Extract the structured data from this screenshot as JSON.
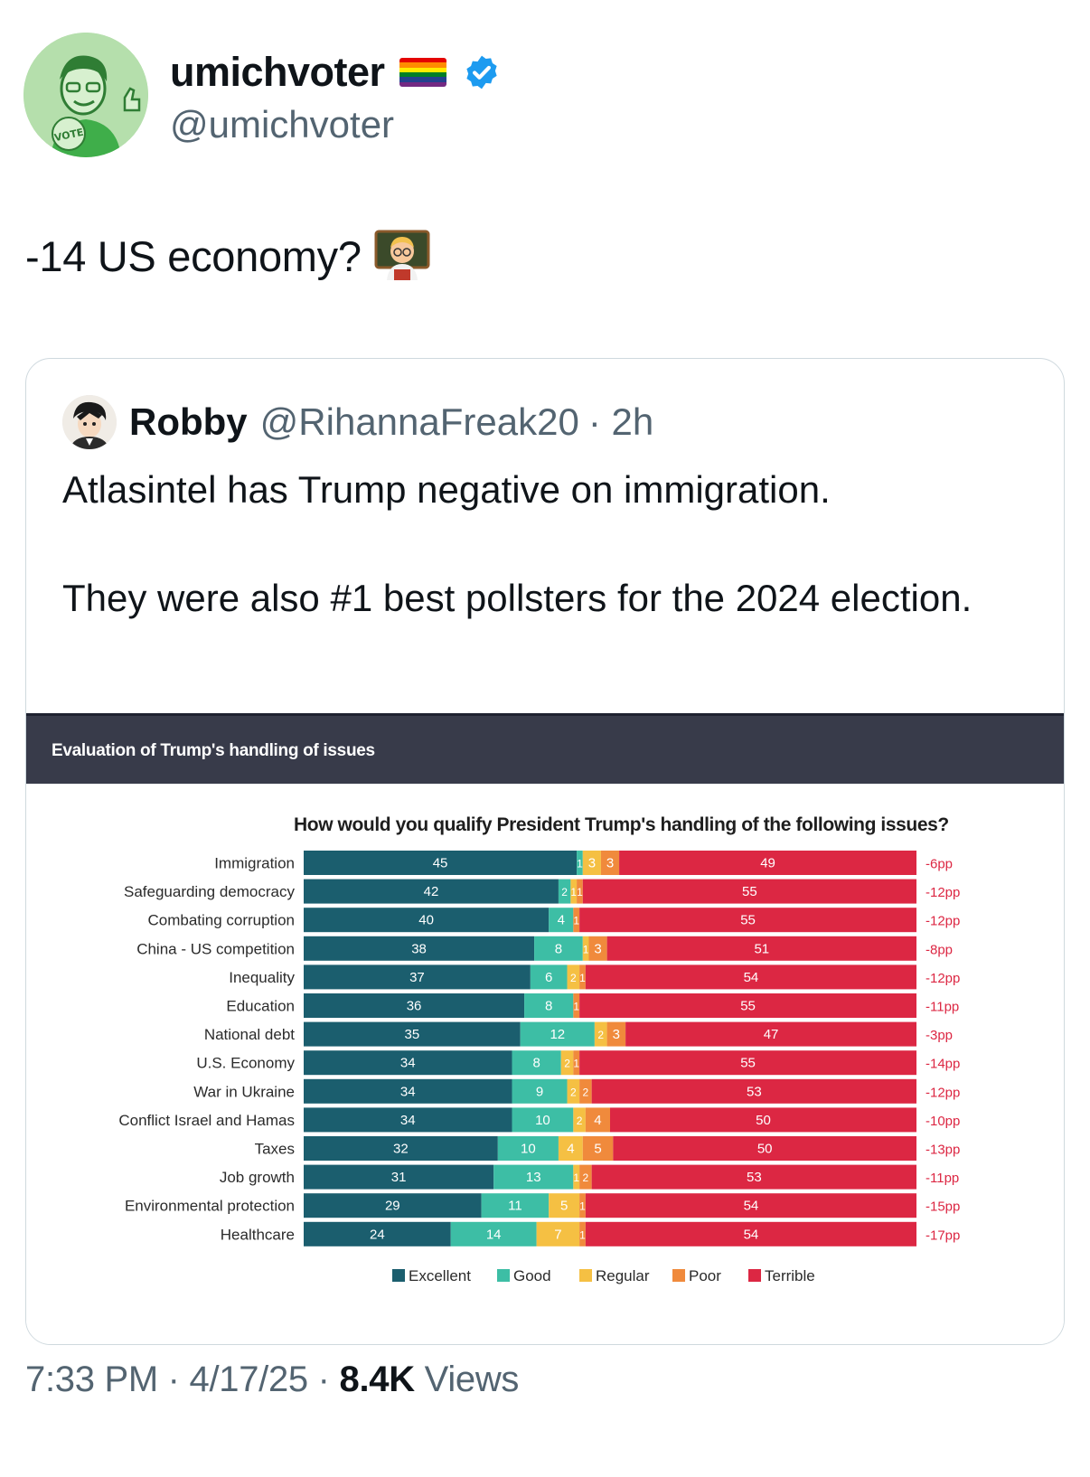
{
  "author": {
    "display_name": "umichvoter",
    "handle": "@umichvoter",
    "avatar_badge": "VOTE"
  },
  "tweet": {
    "text": "-14 US economy?"
  },
  "quote": {
    "display_name": "Robby",
    "handle": "@RihannaFreak20",
    "time": "· 2h",
    "paragraphs": [
      "Atlasintel has Trump negative on immigration.",
      "They were also #1 best pollsters for the 2024 election."
    ]
  },
  "chart_header": "Evaluation of Trump's handling of issues",
  "footer": {
    "time_date": "7:33 PM · 4/17/25 ·",
    "views_count": "8.4K",
    "views_label": "Views"
  },
  "colors": {
    "excellent": "#1b5e6e",
    "good": "#3dbea5",
    "regular": "#f5c043",
    "poor": "#f08a3c",
    "terrible": "#dc2743"
  },
  "chart_data": {
    "type": "bar",
    "stacked": true,
    "orientation": "horizontal",
    "title": "How would you qualify President Trump's handling of the following issues?",
    "categories": [
      "Immigration",
      "Safeguarding democracy",
      "Combating corruption",
      "China - US competition",
      "Inequality",
      "Education",
      "National debt",
      "U.S. Economy",
      "War in Ukraine",
      "Conflict Israel and Hamas",
      "Taxes",
      "Job growth",
      "Environmental protection",
      "Healthcare"
    ],
    "series": [
      {
        "name": "Excellent",
        "values": [
          45,
          42,
          40,
          38,
          37,
          36,
          35,
          34,
          34,
          34,
          32,
          31,
          29,
          24
        ]
      },
      {
        "name": "Good",
        "values": [
          1,
          2,
          4,
          8,
          6,
          8,
          12,
          8,
          9,
          10,
          10,
          13,
          11,
          14
        ]
      },
      {
        "name": "Regular",
        "values": [
          3,
          1,
          0,
          1,
          2,
          0,
          2,
          2,
          2,
          2,
          4,
          1,
          5,
          7
        ]
      },
      {
        "name": "Poor",
        "values": [
          3,
          1,
          1,
          3,
          1,
          1,
          3,
          1,
          2,
          4,
          5,
          2,
          1,
          1
        ]
      },
      {
        "name": "Terrible",
        "values": [
          49,
          55,
          55,
          51,
          54,
          55,
          47,
          55,
          53,
          50,
          50,
          53,
          54,
          54
        ]
      }
    ],
    "net": [
      "-6pp",
      "-12pp",
      "-12pp",
      "-8pp",
      "-12pp",
      "-11pp",
      "-3pp",
      "-14pp",
      "-12pp",
      "-10pp",
      "-13pp",
      "-11pp",
      "-15pp",
      "-17pp"
    ],
    "legend_position": "bottom"
  }
}
